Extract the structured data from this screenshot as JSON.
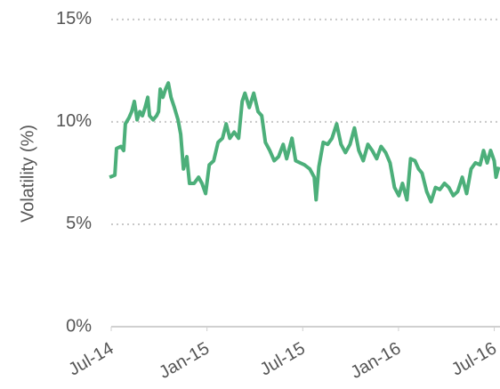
{
  "chart_data": {
    "type": "line",
    "y_label": "Volatility (%)",
    "ylim": [
      0,
      15.3
    ],
    "yticks": [
      {
        "value": 0,
        "label": "0%"
      },
      {
        "value": 5,
        "label": "5%"
      },
      {
        "value": 10,
        "label": "10%"
      },
      {
        "value": 15,
        "label": "15%"
      }
    ],
    "xlim": [
      2014.5,
      2016.53
    ],
    "xticks": [
      {
        "value": 2014.5,
        "label": "Jul-14"
      },
      {
        "value": 2015.0,
        "label": "Jan-15"
      },
      {
        "value": 2015.5,
        "label": "Jul-15"
      },
      {
        "value": 2016.0,
        "label": "Jan-16"
      },
      {
        "value": 2016.5,
        "label": "Jul-16"
      }
    ],
    "grid": true,
    "series": [
      {
        "color": "#4caf7a",
        "x": [
          2014.491,
          2014.519,
          2014.528,
          2014.551,
          2014.565,
          2014.574,
          2014.593,
          2014.607,
          2014.621,
          2014.635,
          2014.649,
          2014.663,
          2014.677,
          2014.691,
          2014.7,
          2014.719,
          2014.737,
          2014.747,
          2014.756,
          2014.77,
          2014.784,
          2014.798,
          2014.812,
          2014.83,
          2014.849,
          2014.863,
          2014.877,
          2014.895,
          2014.909,
          2014.933,
          2014.956,
          2014.974,
          2014.993,
          2015.012,
          2015.035,
          2015.058,
          2015.081,
          2015.1,
          2015.119,
          2015.142,
          2015.165,
          2015.184,
          2015.198,
          2015.221,
          2015.244,
          2015.267,
          2015.286,
          2015.305,
          2015.328,
          2015.351,
          2015.374,
          2015.398,
          2015.416,
          2015.444,
          2015.463,
          2015.486,
          2015.509,
          2015.537,
          2015.56,
          2015.57,
          2015.584,
          2015.607,
          2015.63,
          2015.653,
          2015.677,
          2015.7,
          2015.723,
          2015.747,
          2015.77,
          2015.793,
          2015.816,
          2015.84,
          2015.863,
          2015.886,
          2015.909,
          2015.933,
          2015.956,
          2015.979,
          2016.002,
          2016.021,
          2016.044,
          2016.063,
          2016.086,
          2016.105,
          2016.123,
          2016.147,
          2016.17,
          2016.193,
          2016.216,
          2016.24,
          2016.263,
          2016.286,
          2016.309,
          2016.333,
          2016.356,
          2016.379,
          2016.402,
          2016.426,
          2016.444,
          2016.463,
          2016.481,
          2016.5,
          2016.509,
          2016.523
        ],
        "values": [
          7.3,
          7.4,
          8.7,
          8.8,
          8.6,
          9.9,
          10.2,
          10.5,
          11.0,
          10.1,
          10.5,
          10.3,
          10.7,
          11.2,
          10.3,
          10.1,
          10.3,
          10.5,
          11.6,
          11.2,
          11.6,
          11.9,
          11.2,
          10.7,
          10.1,
          9.4,
          7.7,
          8.3,
          7.0,
          7.0,
          7.3,
          7.0,
          6.5,
          7.9,
          8.1,
          9.0,
          9.2,
          9.9,
          9.2,
          9.5,
          9.2,
          11.0,
          11.4,
          10.7,
          11.4,
          10.5,
          10.3,
          9.0,
          8.6,
          8.1,
          8.3,
          8.9,
          8.2,
          9.2,
          8.1,
          8.0,
          7.9,
          7.7,
          7.3,
          6.2,
          7.8,
          9.0,
          8.9,
          9.2,
          9.9,
          8.9,
          8.5,
          8.9,
          9.7,
          8.6,
          8.1,
          8.9,
          8.6,
          8.2,
          8.8,
          8.5,
          8.0,
          6.8,
          6.4,
          7.0,
          6.2,
          8.2,
          8.1,
          7.7,
          7.5,
          6.6,
          6.1,
          6.8,
          6.7,
          7.0,
          6.8,
          6.4,
          6.6,
          7.3,
          6.5,
          7.7,
          8.0,
          7.9,
          8.6,
          8.0,
          8.6,
          8.1,
          7.3,
          7.8
        ]
      }
    ]
  }
}
